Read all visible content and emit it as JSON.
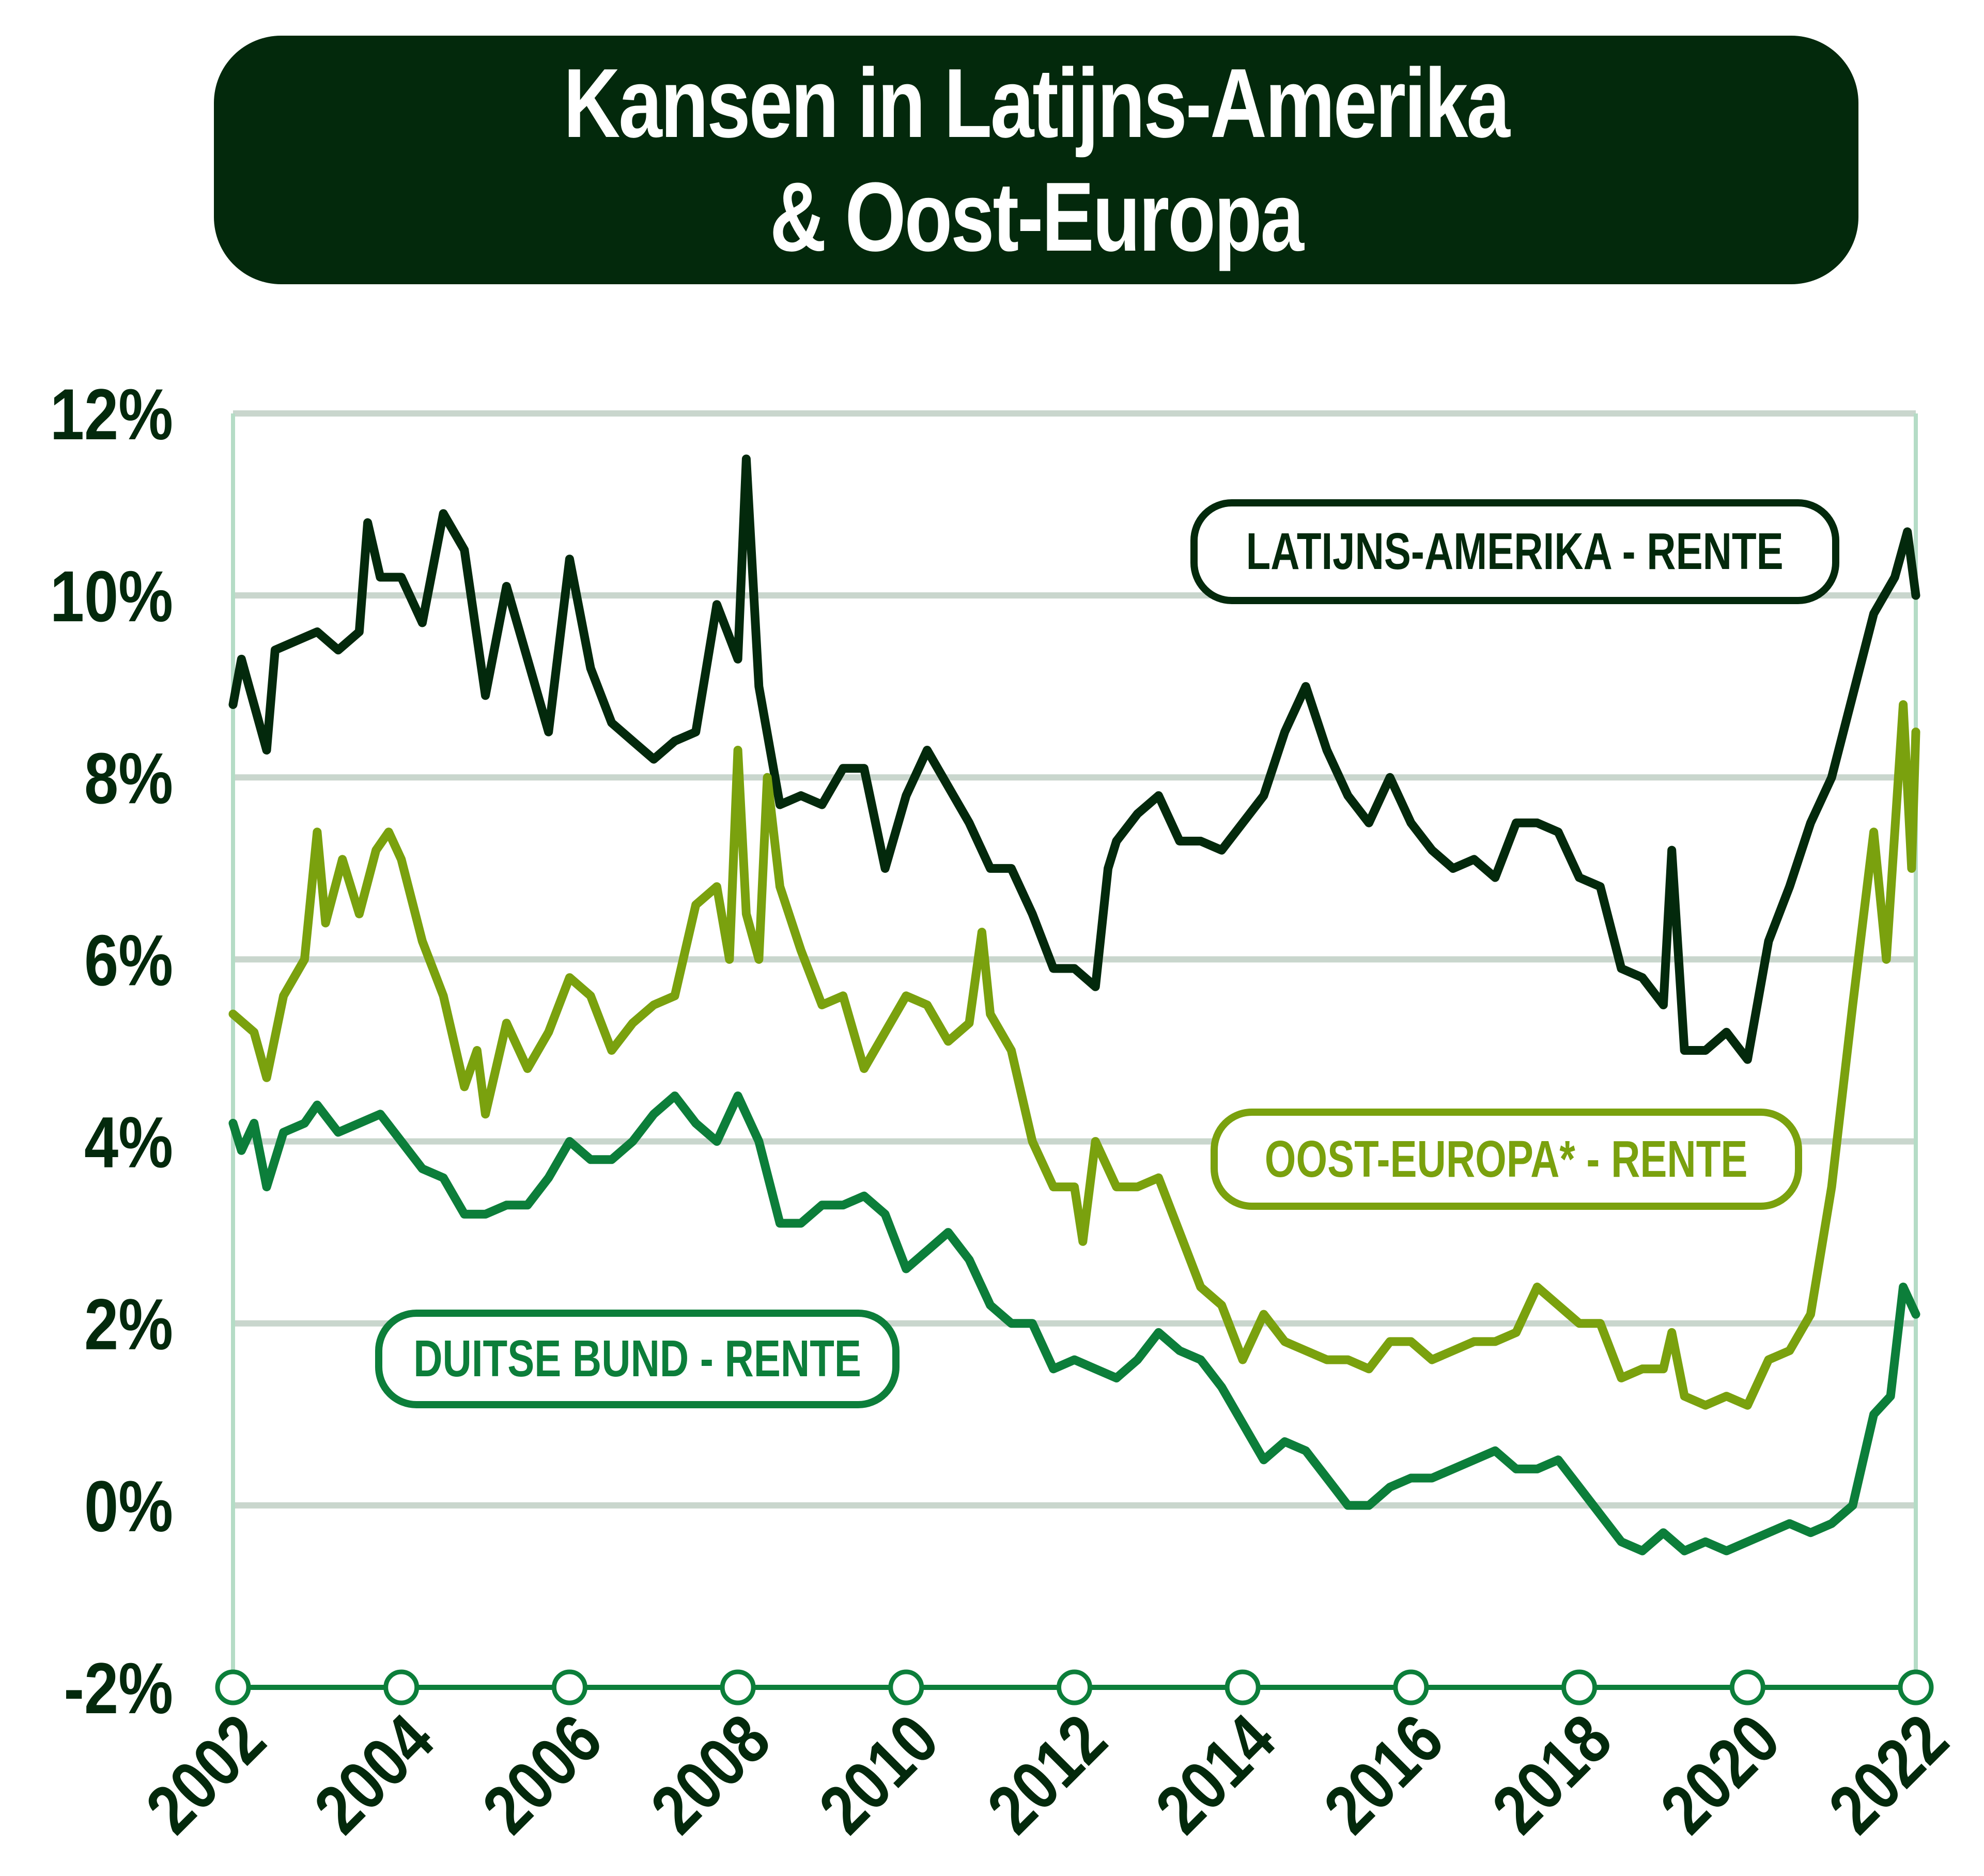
{
  "chart_data": {
    "type": "line",
    "title": [
      "Kansen in Latijns-Amerika",
      "& Oost-Europa"
    ],
    "xlabel": "",
    "ylabel": "",
    "xlim": [
      2002,
      2022
    ],
    "ylim": [
      -2,
      12
    ],
    "grid": true,
    "x_ticks": [
      "2002",
      "2004",
      "2006",
      "2008",
      "2010",
      "2012",
      "2014",
      "2016",
      "2018",
      "2020",
      "2022"
    ],
    "y_ticks": [
      "12%",
      "10%",
      "8%",
      "6%",
      "4%",
      "2%",
      "0%",
      "-2%"
    ],
    "y_tick_values": [
      12,
      10,
      8,
      6,
      4,
      2,
      0,
      -2
    ],
    "series": [
      {
        "name": "LATIJNS-AMERIKA - RENTE",
        "color": "#03290c",
        "x": [
          2002.0,
          2002.1,
          2002.4,
          2002.5,
          2002.75,
          2003.0,
          2003.25,
          2003.5,
          2003.6,
          2003.75,
          2004.0,
          2004.25,
          2004.5,
          2004.75,
          2005.0,
          2005.25,
          2005.5,
          2005.75,
          2006.0,
          2006.25,
          2006.5,
          2006.75,
          2007.0,
          2007.25,
          2007.5,
          2007.75,
          2008.0,
          2008.1,
          2008.25,
          2008.5,
          2008.75,
          2009.0,
          2009.25,
          2009.5,
          2009.75,
          2010.0,
          2010.25,
          2010.5,
          2010.75,
          2011.0,
          2011.25,
          2011.5,
          2011.75,
          2012.0,
          2012.25,
          2012.4,
          2012.5,
          2012.75,
          2013.0,
          2013.25,
          2013.5,
          2013.75,
          2014.0,
          2014.25,
          2014.5,
          2014.75,
          2015.0,
          2015.25,
          2015.5,
          2015.75,
          2016.0,
          2016.25,
          2016.5,
          2016.75,
          2017.0,
          2017.25,
          2017.5,
          2017.75,
          2018.0,
          2018.25,
          2018.5,
          2018.75,
          2019.0,
          2019.1,
          2019.25,
          2019.5,
          2019.75,
          2020.0,
          2020.25,
          2020.5,
          2020.75,
          2021.0,
          2021.25,
          2021.5,
          2021.75,
          2021.9,
          2022.0
        ],
        "y": [
          8.8,
          9.3,
          8.3,
          9.4,
          9.5,
          9.6,
          9.4,
          9.6,
          10.8,
          10.2,
          10.2,
          9.7,
          10.9,
          10.5,
          8.9,
          10.1,
          9.3,
          8.5,
          10.4,
          9.2,
          8.6,
          8.4,
          8.2,
          8.4,
          8.5,
          9.9,
          9.3,
          11.5,
          9.0,
          7.7,
          7.8,
          7.7,
          8.1,
          8.1,
          7.0,
          7.8,
          8.3,
          7.9,
          7.5,
          7.0,
          7.0,
          6.5,
          5.9,
          5.9,
          5.7,
          7.0,
          7.3,
          7.6,
          7.8,
          7.3,
          7.3,
          7.2,
          7.5,
          7.8,
          8.5,
          9.0,
          8.3,
          7.8,
          7.5,
          8.0,
          7.5,
          7.2,
          7.0,
          7.1,
          6.9,
          7.5,
          7.5,
          7.4,
          6.9,
          6.8,
          5.9,
          5.8,
          5.5,
          7.2,
          5.0,
          5.0,
          5.2,
          4.9,
          6.2,
          6.8,
          7.5,
          8.0,
          8.9,
          9.8,
          10.2,
          10.7,
          10.0
        ]
      },
      {
        "name": "OOST-EUROPA* - RENTE",
        "color": "#7aa10e",
        "x": [
          2002.0,
          2002.25,
          2002.4,
          2002.6,
          2002.85,
          2003.0,
          2003.1,
          2003.3,
          2003.5,
          2003.7,
          2003.85,
          2004.0,
          2004.25,
          2004.5,
          2004.75,
          2004.9,
          2005.0,
          2005.25,
          2005.5,
          2005.75,
          2006.0,
          2006.25,
          2006.5,
          2006.75,
          2007.0,
          2007.25,
          2007.5,
          2007.75,
          2007.9,
          2008.0,
          2008.1,
          2008.25,
          2008.35,
          2008.5,
          2008.75,
          2009.0,
          2009.25,
          2009.5,
          2009.75,
          2010.0,
          2010.25,
          2010.5,
          2010.75,
          2010.9,
          2011.0,
          2011.25,
          2011.5,
          2011.75,
          2012.0,
          2012.1,
          2012.25,
          2012.5,
          2012.75,
          2013.0,
          2013.25,
          2013.5,
          2013.75,
          2014.0,
          2014.25,
          2014.5,
          2014.75,
          2015.0,
          2015.25,
          2015.5,
          2015.75,
          2016.0,
          2016.25,
          2016.5,
          2016.75,
          2017.0,
          2017.25,
          2017.5,
          2017.75,
          2018.0,
          2018.25,
          2018.5,
          2018.75,
          2019.0,
          2019.1,
          2019.25,
          2019.5,
          2019.75,
          2020.0,
          2020.25,
          2020.5,
          2020.75,
          2021.0,
          2021.25,
          2021.5,
          2021.65,
          2021.85,
          2021.95,
          2022.0
        ],
        "y": [
          5.4,
          5.2,
          4.7,
          5.6,
          6.0,
          7.4,
          6.4,
          7.1,
          6.5,
          7.2,
          7.4,
          7.1,
          6.2,
          5.6,
          4.6,
          5.0,
          4.3,
          5.3,
          4.8,
          5.2,
          5.8,
          5.6,
          5.0,
          5.3,
          5.5,
          5.6,
          6.6,
          6.8,
          6.0,
          8.3,
          6.5,
          6.0,
          8.0,
          6.8,
          6.1,
          5.5,
          5.6,
          4.8,
          5.2,
          5.6,
          5.5,
          5.1,
          5.3,
          6.3,
          5.4,
          5.0,
          4.0,
          3.5,
          3.5,
          2.9,
          4.0,
          3.5,
          3.5,
          3.6,
          3.0,
          2.4,
          2.2,
          1.6,
          2.1,
          1.8,
          1.7,
          1.6,
          1.6,
          1.5,
          1.8,
          1.8,
          1.6,
          1.7,
          1.8,
          1.8,
          1.9,
          2.4,
          2.2,
          2.0,
          2.0,
          1.4,
          1.5,
          1.5,
          1.9,
          1.2,
          1.1,
          1.2,
          1.1,
          1.6,
          1.7,
          2.1,
          3.5,
          5.5,
          7.4,
          6.0,
          8.8,
          7.0,
          8.5
        ]
      },
      {
        "name": "DUITSE BUND - RENTE",
        "color": "#0c7e3a",
        "x": [
          2002.0,
          2002.1,
          2002.25,
          2002.4,
          2002.6,
          2002.85,
          2003.0,
          2003.25,
          2003.5,
          2003.75,
          2004.0,
          2004.25,
          2004.5,
          2004.75,
          2005.0,
          2005.25,
          2005.5,
          2005.75,
          2006.0,
          2006.25,
          2006.5,
          2006.75,
          2007.0,
          2007.25,
          2007.5,
          2007.75,
          2008.0,
          2008.25,
          2008.5,
          2008.75,
          2009.0,
          2009.25,
          2009.5,
          2009.75,
          2010.0,
          2010.25,
          2010.5,
          2010.75,
          2011.0,
          2011.25,
          2011.5,
          2011.75,
          2012.0,
          2012.25,
          2012.5,
          2012.75,
          2013.0,
          2013.25,
          2013.5,
          2013.75,
          2014.0,
          2014.25,
          2014.5,
          2014.75,
          2015.0,
          2015.25,
          2015.5,
          2015.75,
          2016.0,
          2016.25,
          2016.5,
          2016.75,
          2017.0,
          2017.25,
          2017.5,
          2017.75,
          2018.0,
          2018.25,
          2018.5,
          2018.75,
          2019.0,
          2019.25,
          2019.5,
          2019.75,
          2020.0,
          2020.25,
          2020.5,
          2020.75,
          2021.0,
          2021.25,
          2021.5,
          2021.7,
          2021.85,
          2022.0
        ],
        "y": [
          4.2,
          3.9,
          4.2,
          3.5,
          4.1,
          4.2,
          4.4,
          4.1,
          4.2,
          4.3,
          4.0,
          3.7,
          3.6,
          3.2,
          3.2,
          3.3,
          3.3,
          3.6,
          4.0,
          3.8,
          3.8,
          4.0,
          4.3,
          4.5,
          4.2,
          4.0,
          4.5,
          4.0,
          3.1,
          3.1,
          3.3,
          3.3,
          3.4,
          3.2,
          2.6,
          2.8,
          3.0,
          2.7,
          2.2,
          2.0,
          2.0,
          1.5,
          1.6,
          1.5,
          1.4,
          1.6,
          1.9,
          1.7,
          1.6,
          1.3,
          0.9,
          0.5,
          0.7,
          0.6,
          0.3,
          0.0,
          0.0,
          0.2,
          0.3,
          0.3,
          0.4,
          0.5,
          0.6,
          0.4,
          0.4,
          0.5,
          0.2,
          -0.1,
          -0.4,
          -0.5,
          -0.3,
          -0.5,
          -0.4,
          -0.5,
          -0.4,
          -0.3,
          -0.2,
          -0.3,
          -0.2,
          0.0,
          1.0,
          1.2,
          2.4,
          2.1
        ]
      }
    ],
    "legend": [
      "LATIJNS-AMERIKA - RENTE",
      "OOST-EUROPA* - RENTE",
      "DUITSE BUND - RENTE"
    ],
    "legend_placement": "inline-labels"
  }
}
